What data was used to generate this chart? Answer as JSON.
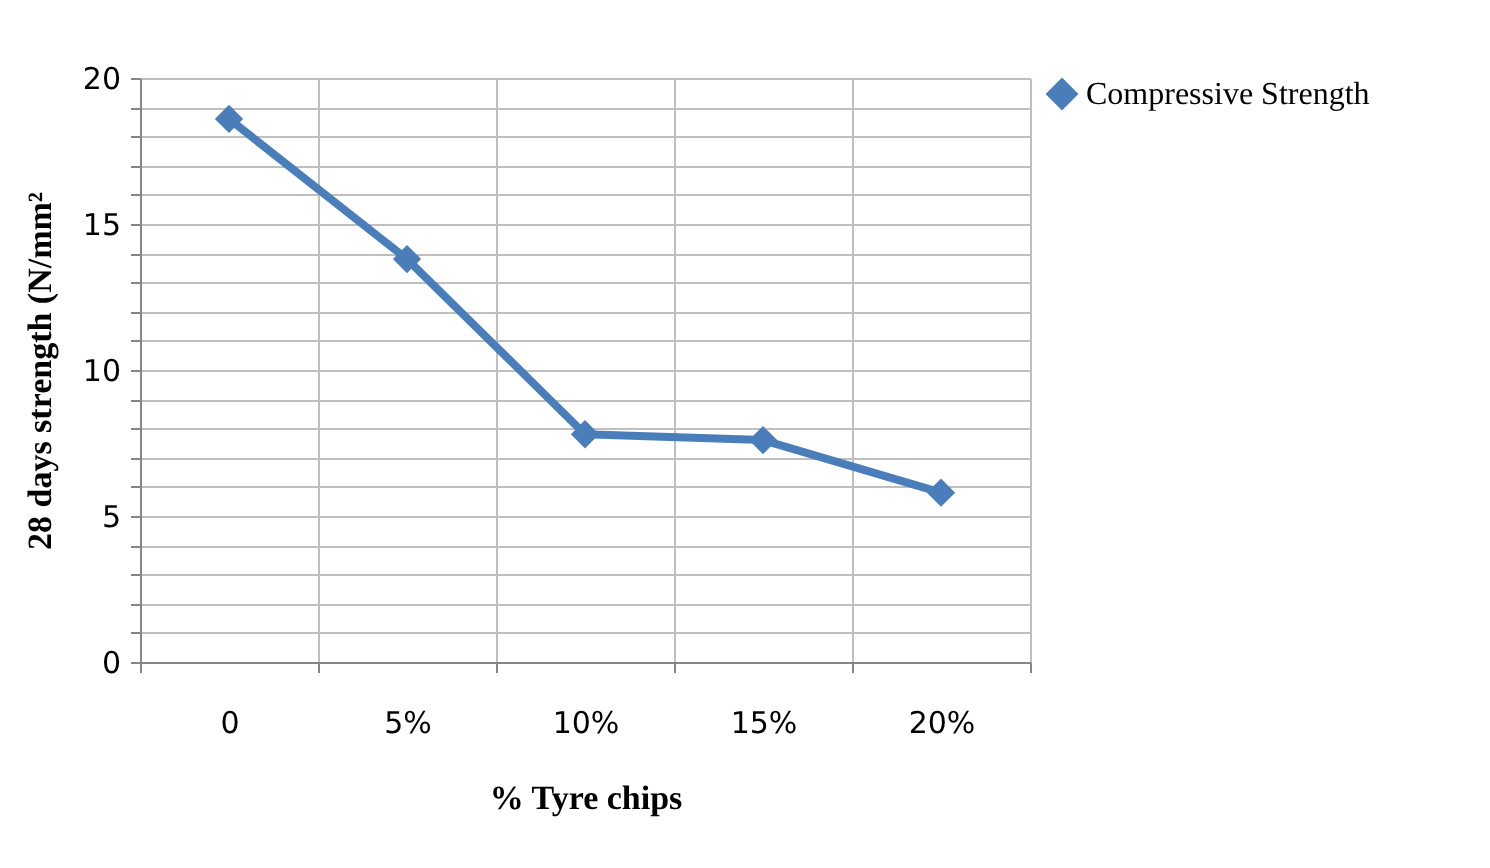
{
  "chart_data": {
    "type": "line",
    "xlabel": "% Tyre chips",
    "ylabel": "28 days  strength (N/mm²",
    "categories": [
      "0",
      "5%",
      "10%",
      "15%",
      "20%"
    ],
    "series": [
      {
        "name": "Compressive Strength",
        "color": "#4a7ebb",
        "values": [
          18.6,
          13.8,
          7.8,
          7.6,
          5.8
        ]
      }
    ],
    "ylim": [
      0,
      20
    ],
    "yticks": [
      0,
      {
        "value": 1,
        "label": null
      },
      {
        "value": 2,
        "label": null
      },
      {
        "value": 3,
        "label": null
      },
      {
        "value": 4,
        "label": null
      },
      5,
      {
        "value": 6,
        "label": null
      },
      {
        "value": 7,
        "label": null
      },
      {
        "value": 8,
        "label": null
      },
      {
        "value": 9,
        "label": null
      },
      10,
      {
        "value": 11,
        "label": null
      },
      {
        "value": 12,
        "label": null
      },
      {
        "value": 13,
        "label": null
      },
      {
        "value": 14,
        "label": null
      },
      15,
      {
        "value": 16,
        "label": null
      },
      {
        "value": 17,
        "label": null
      },
      {
        "value": 18,
        "label": null
      },
      {
        "value": 19,
        "label": null
      },
      20
    ],
    "grid": true,
    "legend": "right",
    "marker": "diamond",
    "line_style": "solid"
  }
}
